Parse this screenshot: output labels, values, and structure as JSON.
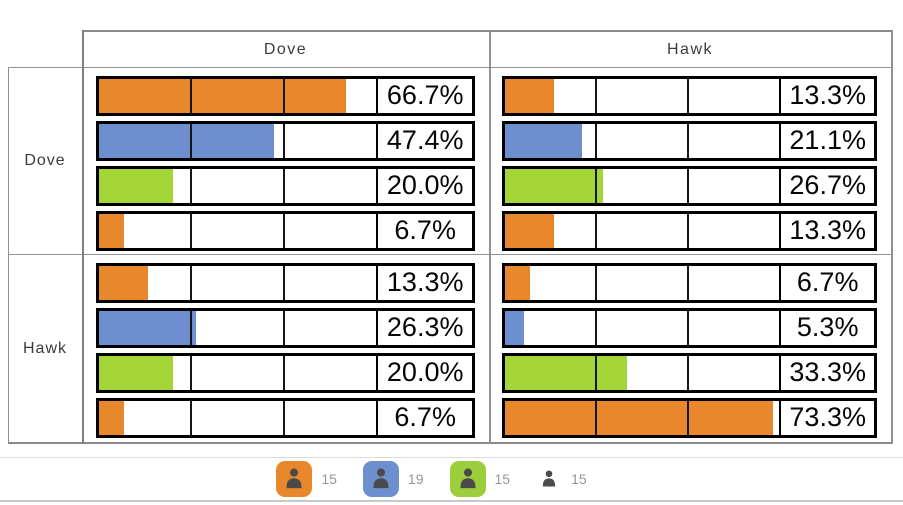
{
  "matrix": {
    "col_headers": [
      {
        "label": "Dove"
      },
      {
        "label": "Hawk"
      }
    ],
    "row_headers": [
      {
        "label": "Dove"
      },
      {
        "label": "Hawk"
      }
    ],
    "cells": [
      {
        "row": "Dove",
        "col": "Dove",
        "bars": [
          {
            "value": 66.7,
            "label": "66.7%",
            "color": "#E8872B"
          },
          {
            "value": 47.4,
            "label": "47.4%",
            "color": "#6D8FD0"
          },
          {
            "value": 20.0,
            "label": "20.0%",
            "color": "#A3D636"
          },
          {
            "value": 6.7,
            "label": "6.7%",
            "color": "#E8872B"
          }
        ]
      },
      {
        "row": "Dove",
        "col": "Hawk",
        "bars": [
          {
            "value": 13.3,
            "label": "13.3%",
            "color": "#E8872B"
          },
          {
            "value": 21.1,
            "label": "21.1%",
            "color": "#6D8FD0"
          },
          {
            "value": 26.7,
            "label": "26.7%",
            "color": "#A3D636"
          },
          {
            "value": 13.3,
            "label": "13.3%",
            "color": "#E8872B"
          }
        ]
      },
      {
        "row": "Hawk",
        "col": "Dove",
        "bars": [
          {
            "value": 13.3,
            "label": "13.3%",
            "color": "#E8872B"
          },
          {
            "value": 26.3,
            "label": "26.3%",
            "color": "#6D8FD0"
          },
          {
            "value": 20.0,
            "label": "20.0%",
            "color": "#A3D636"
          },
          {
            "value": 6.7,
            "label": "6.7%",
            "color": "#E8872B"
          }
        ]
      },
      {
        "row": "Hawk",
        "col": "Hawk",
        "bars": [
          {
            "value": 6.7,
            "label": "6.7%",
            "color": "#E8872B"
          },
          {
            "value": 5.3,
            "label": "5.3%",
            "color": "#6D8FD0"
          },
          {
            "value": 33.3,
            "label": "33.3%",
            "color": "#A3D636"
          },
          {
            "value": 73.3,
            "label": "73.3%",
            "color": "#E8872B"
          }
        ]
      }
    ]
  },
  "legend": {
    "items": [
      {
        "icon": "person-icon",
        "bg": "#E8872B",
        "count": "15"
      },
      {
        "icon": "person-icon",
        "bg": "#6D8FD0",
        "count": "19"
      },
      {
        "icon": "person-icon",
        "bg": "#9CCE3B",
        "count": "15"
      },
      {
        "icon": "person-icon",
        "bg": "",
        "count": "15"
      }
    ]
  },
  "chart_data": {
    "type": "bar",
    "layout": "2x2 matrix of horizontal bar charts (rows x columns of a Dove/Hawk game)",
    "col_headers": [
      "Dove",
      "Hawk"
    ],
    "row_headers": [
      "Dove",
      "Hawk"
    ],
    "axis_max": 75,
    "gridline_interval_pct": 25,
    "grid": "vertical gridlines at 25% and 50% of a 0-75% axis",
    "bar_colors": [
      "#E8872B",
      "#6D8FD0",
      "#A3D636",
      "#E8872B"
    ],
    "cells": [
      {
        "row": "Dove",
        "col": "Dove",
        "values": [
          66.7,
          47.4,
          20.0,
          6.7
        ],
        "labels": [
          "66.7%",
          "47.4%",
          "20.0%",
          "6.7%"
        ]
      },
      {
        "row": "Dove",
        "col": "Hawk",
        "values": [
          13.3,
          21.1,
          26.7,
          13.3
        ],
        "labels": [
          "13.3%",
          "21.1%",
          "26.7%",
          "13.3%"
        ]
      },
      {
        "row": "Hawk",
        "col": "Dove",
        "values": [
          13.3,
          26.3,
          20.0,
          6.7
        ],
        "labels": [
          "13.3%",
          "26.3%",
          "20.0%",
          "6.7%"
        ]
      },
      {
        "row": "Hawk",
        "col": "Hawk",
        "values": [
          6.7,
          5.3,
          33.3,
          73.3
        ],
        "labels": [
          "6.7%",
          "5.3%",
          "33.3%",
          "73.3%"
        ]
      }
    ],
    "legend_position": "bottom-center",
    "legend_counts": [
      15,
      19,
      15,
      15
    ],
    "legend_colors": [
      "#E8872B",
      "#6D8FD0",
      "#9CCE3B",
      "none"
    ]
  }
}
